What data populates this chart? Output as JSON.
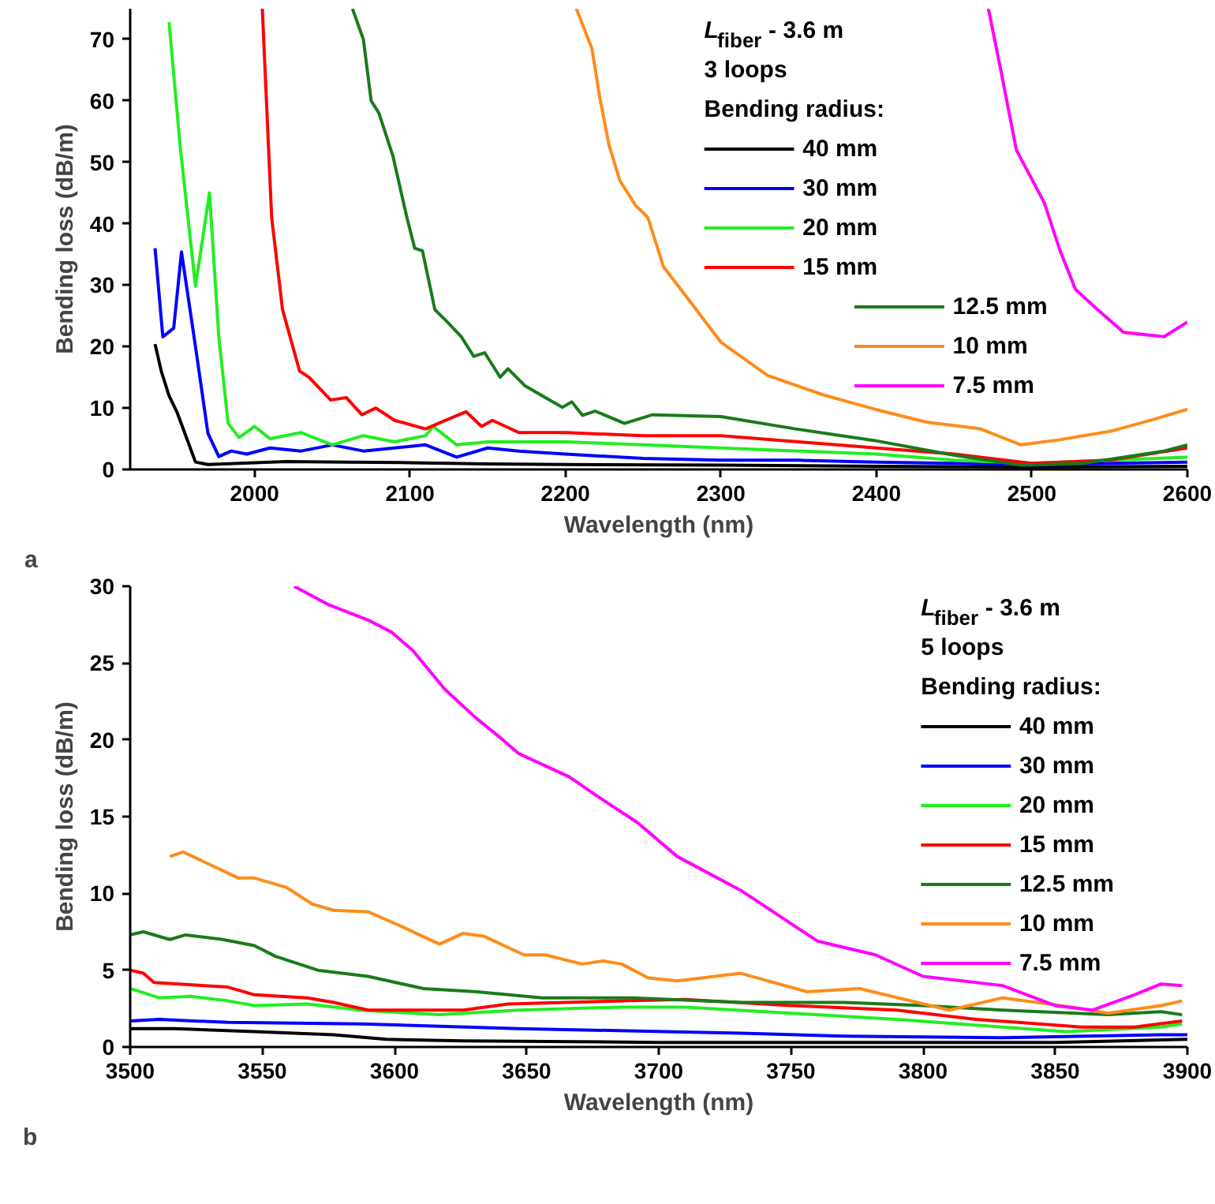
{
  "chart_data": [
    {
      "type": "line",
      "xlabel": "Wavelength (nm)",
      "ylabel": "Bending loss (dB/m)",
      "legend_title": "Bending radius:",
      "annotations": [
        "L$_{fiber}$ - 3.6 m",
        "3 loops",
        "a"
      ],
      "xlim": [
        1920,
        2600
      ],
      "ylim": [
        0,
        75
      ],
      "xticks": [
        2000,
        2100,
        2200,
        2300,
        2400,
        2500,
        2600
      ],
      "yticks": [
        0,
        10,
        20,
        30,
        40,
        50,
        60,
        70
      ],
      "grid": false,
      "legend": "right",
      "line_style": "solid",
      "series": [
        {
          "name": "40 mm",
          "color": "#000000",
          "x": [
            1936,
            1940,
            1945,
            1950,
            1955,
            1962,
            1970,
            1990,
            2020,
            2060,
            2100,
            2150,
            2200,
            2300,
            2400,
            2500,
            2600
          ],
          "values": [
            20.4,
            16,
            12,
            9.4,
            6,
            1.2,
            0.8,
            1,
            1.3,
            1.2,
            1.1,
            0.9,
            0.8,
            0.7,
            0.5,
            0.4,
            0.5
          ]
        },
        {
          "name": "30 mm",
          "color": "#0000ff",
          "x": [
            1936,
            1941,
            1948,
            1953,
            1962,
            1970,
            1977,
            1985,
            1995,
            2010,
            2030,
            2050,
            2070,
            2090,
            2110,
            2130,
            2150,
            2170,
            2200,
            2250,
            2300,
            2350,
            2400,
            2450,
            2500,
            2550,
            2600
          ],
          "values": [
            36,
            21.6,
            23,
            35.4,
            20,
            5.9,
            2.1,
            3,
            2.5,
            3.5,
            3,
            4,
            3,
            3.5,
            4,
            2,
            3.5,
            3,
            2.5,
            1.8,
            1.5,
            1.5,
            1.2,
            1,
            0.7,
            1,
            1.2
          ]
        },
        {
          "name": "20 mm",
          "color": "#22ee22",
          "x": [
            1945,
            1952,
            1962,
            1971,
            1977,
            1983,
            1990,
            2000,
            2010,
            2030,
            2050,
            2070,
            2090,
            2110,
            2115,
            2130,
            2150,
            2200,
            2250,
            2300,
            2350,
            2400,
            2450,
            2500,
            2550,
            2600
          ],
          "values": [
            72.8,
            53,
            29.8,
            45,
            21.6,
            7.5,
            5.2,
            7,
            5,
            6,
            4,
            5.5,
            4.5,
            5.5,
            7,
            4,
            4.5,
            4.5,
            4,
            3.5,
            3,
            2.5,
            1.5,
            1,
            1.5,
            2
          ]
        },
        {
          "name": "15 mm",
          "color": "#ff0000",
          "x": [
            2005,
            2011,
            2018,
            2029,
            2035,
            2049,
            2059,
            2069,
            2078,
            2090,
            2110,
            2120,
            2136,
            2146,
            2153,
            2170,
            2200,
            2250,
            2300,
            2350,
            2400,
            2450,
            2500,
            2550,
            2600
          ],
          "values": [
            75,
            41,
            26,
            16,
            15,
            11.3,
            11.7,
            8.9,
            10,
            8,
            6.6,
            7.7,
            9.4,
            7,
            8,
            6,
            6,
            5.5,
            5.5,
            4.5,
            3.5,
            2.5,
            1,
            1.5,
            3.5
          ]
        },
        {
          "name": "12.5 mm",
          "color": "#1a7a1a",
          "x": [
            2063,
            2070,
            2075,
            2080,
            2089,
            2098,
            2103,
            2108,
            2116,
            2124,
            2133,
            2141,
            2148,
            2158,
            2163,
            2174,
            2198,
            2204,
            2211,
            2219,
            2238,
            2256,
            2300,
            2348,
            2399,
            2450,
            2493,
            2533,
            2585,
            2600
          ],
          "values": [
            75,
            70,
            60,
            58,
            51,
            41,
            36,
            35.6,
            26,
            24,
            21.6,
            18.4,
            19,
            15,
            16.4,
            13.6,
            10.1,
            11,
            8.8,
            9.5,
            7.5,
            8.9,
            8.6,
            6.6,
            4.7,
            2.3,
            0.7,
            1,
            3,
            4
          ]
        },
        {
          "name": "10 mm",
          "color": "#ff8c1a",
          "x": [
            2207,
            2217,
            2222,
            2228,
            2235,
            2245,
            2253,
            2263,
            2279,
            2300,
            2330,
            2365,
            2399,
            2432,
            2467,
            2493,
            2517,
            2552,
            2579,
            2600
          ],
          "values": [
            75,
            68.5,
            60.6,
            52.8,
            47,
            43,
            41,
            33,
            27.7,
            20.7,
            15.3,
            12.2,
            9.8,
            7.7,
            6.6,
            4,
            4.8,
            6.3,
            8.2,
            9.8
          ]
        },
        {
          "name": "7.5 mm",
          "color": "#ff00ff",
          "x": [
            2472,
            2480,
            2490,
            2508,
            2518,
            2528,
            2541,
            2559,
            2585,
            2600
          ],
          "values": [
            75,
            65,
            52,
            43.4,
            35.7,
            29.3,
            26.3,
            22.3,
            21.6,
            24
          ]
        }
      ]
    },
    {
      "type": "line",
      "xlabel": "Wavelength (nm)",
      "ylabel": "Bending loss (dB/m)",
      "legend_title": "Bending radius:",
      "annotations": [
        "L$_{fiber}$ - 3.6 m",
        "5 loops",
        "b"
      ],
      "xlim": [
        3500,
        3900
      ],
      "ylim": [
        0,
        30
      ],
      "xticks": [
        3500,
        3550,
        3600,
        3650,
        3700,
        3750,
        3800,
        3850,
        3900
      ],
      "yticks": [
        0,
        5,
        10,
        15,
        20,
        25,
        30
      ],
      "grid": false,
      "legend": "right",
      "line_style": "solid",
      "series": [
        {
          "name": "40 mm",
          "color": "#000000",
          "x": [
            3500,
            3517,
            3547,
            3577,
            3597,
            3626,
            3700,
            3800,
            3850,
            3900
          ],
          "values": [
            1.2,
            1.2,
            1.0,
            0.8,
            0.5,
            0.4,
            0.3,
            0.3,
            0.3,
            0.5
          ]
        },
        {
          "name": "30 mm",
          "color": "#0000ff",
          "x": [
            3500,
            3511,
            3537,
            3587,
            3647,
            3702,
            3731,
            3770,
            3830,
            3890,
            3900
          ],
          "values": [
            1.7,
            1.8,
            1.6,
            1.5,
            1.2,
            1.0,
            0.9,
            0.7,
            0.6,
            0.8,
            0.8
          ]
        },
        {
          "name": "20 mm",
          "color": "#22ee22",
          "x": [
            3500,
            3511,
            3523,
            3537,
            3547,
            3567,
            3587,
            3617,
            3647,
            3686,
            3710,
            3750,
            3790,
            3830,
            3854,
            3890,
            3898
          ],
          "values": [
            3.8,
            3.2,
            3.3,
            3,
            2.7,
            2.8,
            2.4,
            2.1,
            2.4,
            2.6,
            2.6,
            2.2,
            1.8,
            1.3,
            1,
            1.3,
            1.5
          ]
        },
        {
          "name": "15 mm",
          "color": "#ff0000",
          "x": [
            3500,
            3505,
            3509,
            3537,
            3547,
            3567,
            3577,
            3590,
            3626,
            3643,
            3686,
            3710,
            3750,
            3790,
            3820,
            3860,
            3880,
            3898
          ],
          "values": [
            5,
            4.8,
            4.2,
            3.9,
            3.4,
            3.2,
            2.9,
            2.4,
            2.4,
            2.8,
            3,
            3.1,
            2.7,
            2.4,
            1.8,
            1.3,
            1.3,
            1.7
          ]
        },
        {
          "name": "12.5 mm",
          "color": "#1a7a1a",
          "x": [
            3500,
            3505,
            3515,
            3521,
            3535,
            3547,
            3555,
            3571,
            3590,
            3611,
            3631,
            3656,
            3690,
            3731,
            3770,
            3800,
            3830,
            3870,
            3890,
            3898
          ],
          "values": [
            7.3,
            7.5,
            7,
            7.3,
            7,
            6.6,
            5.9,
            5,
            4.6,
            3.8,
            3.6,
            3.2,
            3.2,
            2.9,
            2.9,
            2.7,
            2.4,
            2.1,
            2.3,
            2.1
          ]
        },
        {
          "name": "10 mm",
          "color": "#ff8c1a",
          "x": [
            3515,
            3520,
            3541,
            3547,
            3559,
            3569,
            3577,
            3590,
            3602,
            3617,
            3626,
            3634,
            3649,
            3657,
            3671,
            3679,
            3686,
            3696,
            3707,
            3731,
            3756,
            3776,
            3810,
            3830,
            3856,
            3870,
            3890,
            3898
          ],
          "values": [
            12.4,
            12.7,
            11,
            11,
            10.4,
            9.3,
            8.9,
            8.8,
            7.9,
            6.7,
            7.4,
            7.2,
            6,
            6,
            5.4,
            5.6,
            5.4,
            4.5,
            4.3,
            4.8,
            3.6,
            3.8,
            2.4,
            3.2,
            2.6,
            2.2,
            2.7,
            3
          ]
        },
        {
          "name": "7.5 mm",
          "color": "#ff00ff",
          "x": [
            3562,
            3575,
            3590,
            3599,
            3607,
            3619,
            3631,
            3641,
            3647,
            3666,
            3677,
            3692,
            3707,
            3731,
            3760,
            3782,
            3800,
            3830,
            3850,
            3864,
            3880,
            3890,
            3898
          ],
          "values": [
            30,
            28.8,
            27.8,
            27,
            25.8,
            23.3,
            21.4,
            20,
            19.1,
            17.6,
            16.3,
            14.6,
            12.4,
            10.2,
            6.9,
            6,
            4.6,
            4,
            2.7,
            2.4,
            3.4,
            4.1,
            4
          ]
        }
      ]
    }
  ]
}
